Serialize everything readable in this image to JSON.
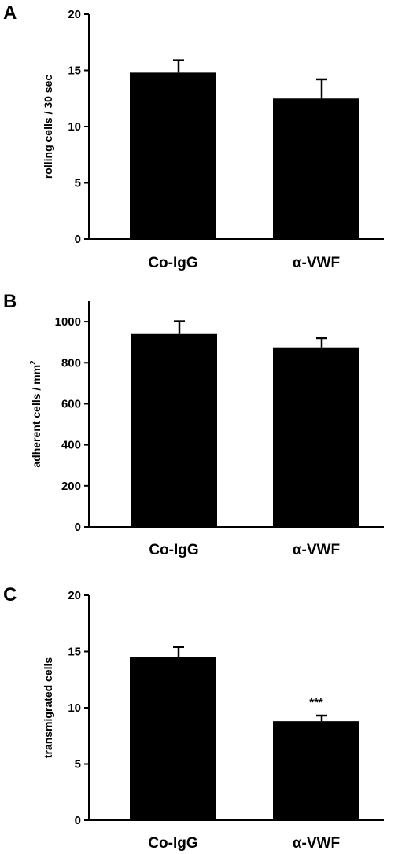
{
  "chart_data": [
    {
      "panel_label": "A",
      "type": "bar",
      "categories": [
        "Co-IgG",
        "α-VWF"
      ],
      "values": [
        14.8,
        12.5
      ],
      "errors": [
        1.1,
        1.7
      ],
      "ylabel": "rolling cells / 30 sec",
      "ylim": [
        0,
        20
      ],
      "yticks": [
        "0",
        "5",
        "10",
        "15",
        "20"
      ],
      "annotations": [
        "",
        ""
      ],
      "bar_color": "#000000",
      "grid": false
    },
    {
      "panel_label": "B",
      "type": "bar",
      "categories": [
        "Co-IgG",
        "α-VWF"
      ],
      "values": [
        940,
        875
      ],
      "errors": [
        62,
        45
      ],
      "ylabel": "adherent cells / mm",
      "ylabel_sup": "2",
      "ylim": [
        0,
        1100
      ],
      "yticks": [
        "0",
        "200",
        "400",
        "600",
        "800",
        "1000"
      ],
      "annotations": [
        "",
        ""
      ],
      "bar_color": "#000000",
      "grid": false
    },
    {
      "panel_label": "C",
      "type": "bar",
      "categories": [
        "Co-IgG",
        "α-VWF"
      ],
      "values": [
        14.5,
        8.8
      ],
      "errors": [
        0.9,
        0.5
      ],
      "ylabel": "transmigrated cells",
      "ylim": [
        0,
        20
      ],
      "yticks": [
        "0",
        "5",
        "10",
        "15",
        "20"
      ],
      "annotations": [
        "",
        "***"
      ],
      "bar_color": "#000000",
      "grid": false
    }
  ]
}
